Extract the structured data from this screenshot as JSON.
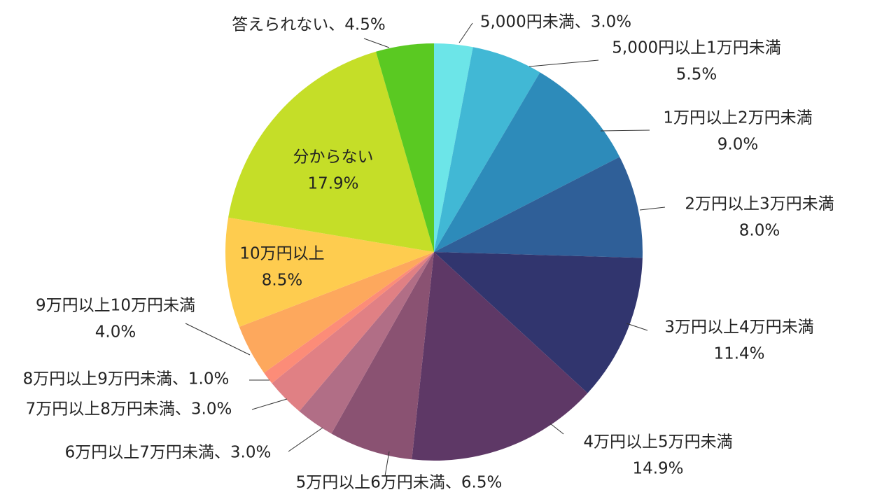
{
  "chart_data": {
    "type": "pie",
    "start_angle_deg": 0,
    "direction": "clockwise",
    "slices": [
      {
        "label": "5,000円未満",
        "value": 3.0,
        "value_text": "3.0%",
        "color": "#6ce5e8"
      },
      {
        "label": "5,000円以上1万円未満",
        "value": 5.5,
        "value_text": "5.5%",
        "color": "#41b8d5"
      },
      {
        "label": "1万円以上2万円未満",
        "value": 9.0,
        "value_text": "9.0%",
        "color": "#2d8bba"
      },
      {
        "label": "2万円以上3万円未満",
        "value": 8.0,
        "value_text": "8.0%",
        "color": "#2f5f98"
      },
      {
        "label": "3万円以上4万円未満",
        "value": 11.4,
        "value_text": "11.4%",
        "color": "#31356e"
      },
      {
        "label": "4万円以上5万円未満",
        "value": 14.9,
        "value_text": "14.9%",
        "color": "#5e3866"
      },
      {
        "label": "5万円以上6万円未満",
        "value": 6.5,
        "value_text": "6.5%",
        "color": "#8a5272"
      },
      {
        "label": "6万円以上7万円未満",
        "value": 3.0,
        "value_text": "3.0%",
        "color": "#b16e86"
      },
      {
        "label": "7万円以上8万円未満",
        "value": 3.0,
        "value_text": "3.0%",
        "color": "#e08084"
      },
      {
        "label": "8万円以上9万円未満",
        "value": 1.0,
        "value_text": "1.0%",
        "color": "#fc8c78"
      },
      {
        "label": "9万円以上10万円未満",
        "value": 4.0,
        "value_text": "4.0%",
        "color": "#fda85d"
      },
      {
        "label": "10万円以上",
        "value": 8.5,
        "value_text": "8.5%",
        "color": "#fecc4f"
      },
      {
        "label": "分からない",
        "value": 17.9,
        "value_text": "17.9%",
        "color": "#c5de28"
      },
      {
        "label": "答えられない",
        "value": 4.5,
        "value_text": "4.5%",
        "color": "#5ac922"
      }
    ],
    "label_separator": "、"
  }
}
